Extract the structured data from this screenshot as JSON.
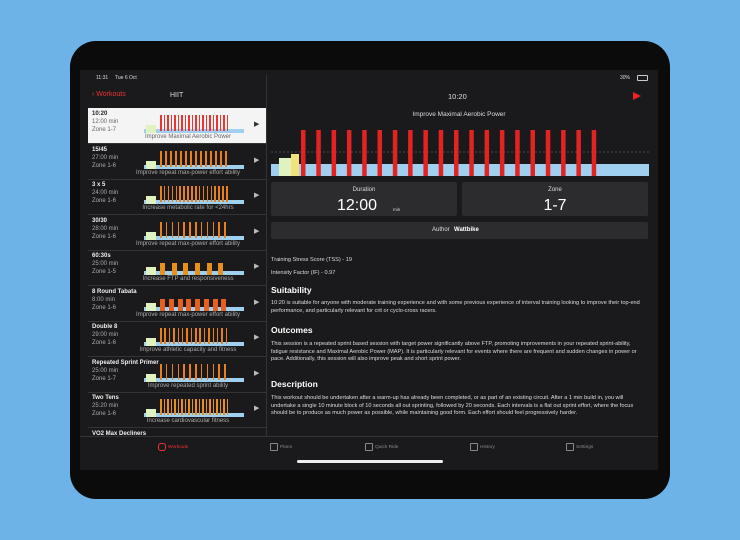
{
  "status_bar": {
    "time": "11:31",
    "date": "Tue 6 Oct",
    "battery": "30%"
  },
  "nav": {
    "back": "Workouts",
    "list_title": "HIIT",
    "detail_title": "10:20"
  },
  "workouts": [
    {
      "name": "10:20",
      "duration": "12:00 min",
      "zone": "Zone 1-7",
      "goal": "Improve Maximal Aerobic Power"
    },
    {
      "name": "15/45",
      "duration": "27:00 min",
      "zone": "Zone 1-6",
      "goal": "Improve repeat max-power effort ability"
    },
    {
      "name": "3 x 5",
      "duration": "24:00 min",
      "zone": "Zone 1-6",
      "goal": "Increase metabolic rate for <24hrs"
    },
    {
      "name": "30/30",
      "duration": "28:00 min",
      "zone": "Zone 1-6",
      "goal": "Improve repeat max-power effort ability"
    },
    {
      "name": "60:30s",
      "duration": "25:00 min",
      "zone": "Zone 1-5",
      "goal": "Increase FTP and responsiveness"
    },
    {
      "name": "8 Round Tabata",
      "duration": "8:00 min",
      "zone": "Zone 1-6",
      "goal": "Improve repeat max-power effort ability"
    },
    {
      "name": "Double 8",
      "duration": "29:00 min",
      "zone": "Zone 1-6",
      "goal": "Improve athletic capacity and fitness"
    },
    {
      "name": "Repeated Sprint Primer",
      "duration": "25:00 min",
      "zone": "Zone 1-7",
      "goal": "Improve repeated sprint ability"
    },
    {
      "name": "Two Tens",
      "duration": "25:20 min",
      "zone": "Zone 1-6",
      "goal": "Increase cardiovascular fitness"
    },
    {
      "name": "VO2 Max Decliners"
    }
  ],
  "detail": {
    "chart_title": "Improve Maximal Aerobic Power",
    "duration_label": "Duration",
    "duration_value": "12:00",
    "duration_unit": "min",
    "zone_label": "Zone",
    "zone_value": "1-7",
    "author_label": "Author",
    "author": "Wattbike",
    "tss": "Training Stress Score (TSS) - 19",
    "if": "Intensity Factor (IF) - 0.97",
    "suitability_heading": "Suitability",
    "suitability": "10:20 is suitable for anyone with moderate training experience and with some previous experience of interval training looking to improve their top-end performance, and particularly relevant for crit or cyclo-cross racers.",
    "outcomes_heading": "Outcomes",
    "outcomes": "This session is a repeated sprint based session with target power significantly above FTP, promoting improvements in your repeated sprint-ability, fatigue resistance and Maximal Aerobic Power (MAP). It is particularly relevant for events where there are frequent and sudden changes in power or pace. Additionally, this session will also improve peak and short sprint power.",
    "description_heading": "Description",
    "description": "This workout should be undertaken after a warm-up has already been completed, or as part of an existing circuit. After a 1 min build in, you will undertake a single 10 minute block of 10 seconds all out sprinting, followed by 20 seconds. Each intervals is a flat out sprint effort, where the focus should be to produce as much power as possible, while maintaining good form. Each effort should feel progressively harder."
  },
  "tabs": [
    "Workouts",
    "Plans",
    "Quick Ride",
    "History",
    "Settings"
  ]
}
